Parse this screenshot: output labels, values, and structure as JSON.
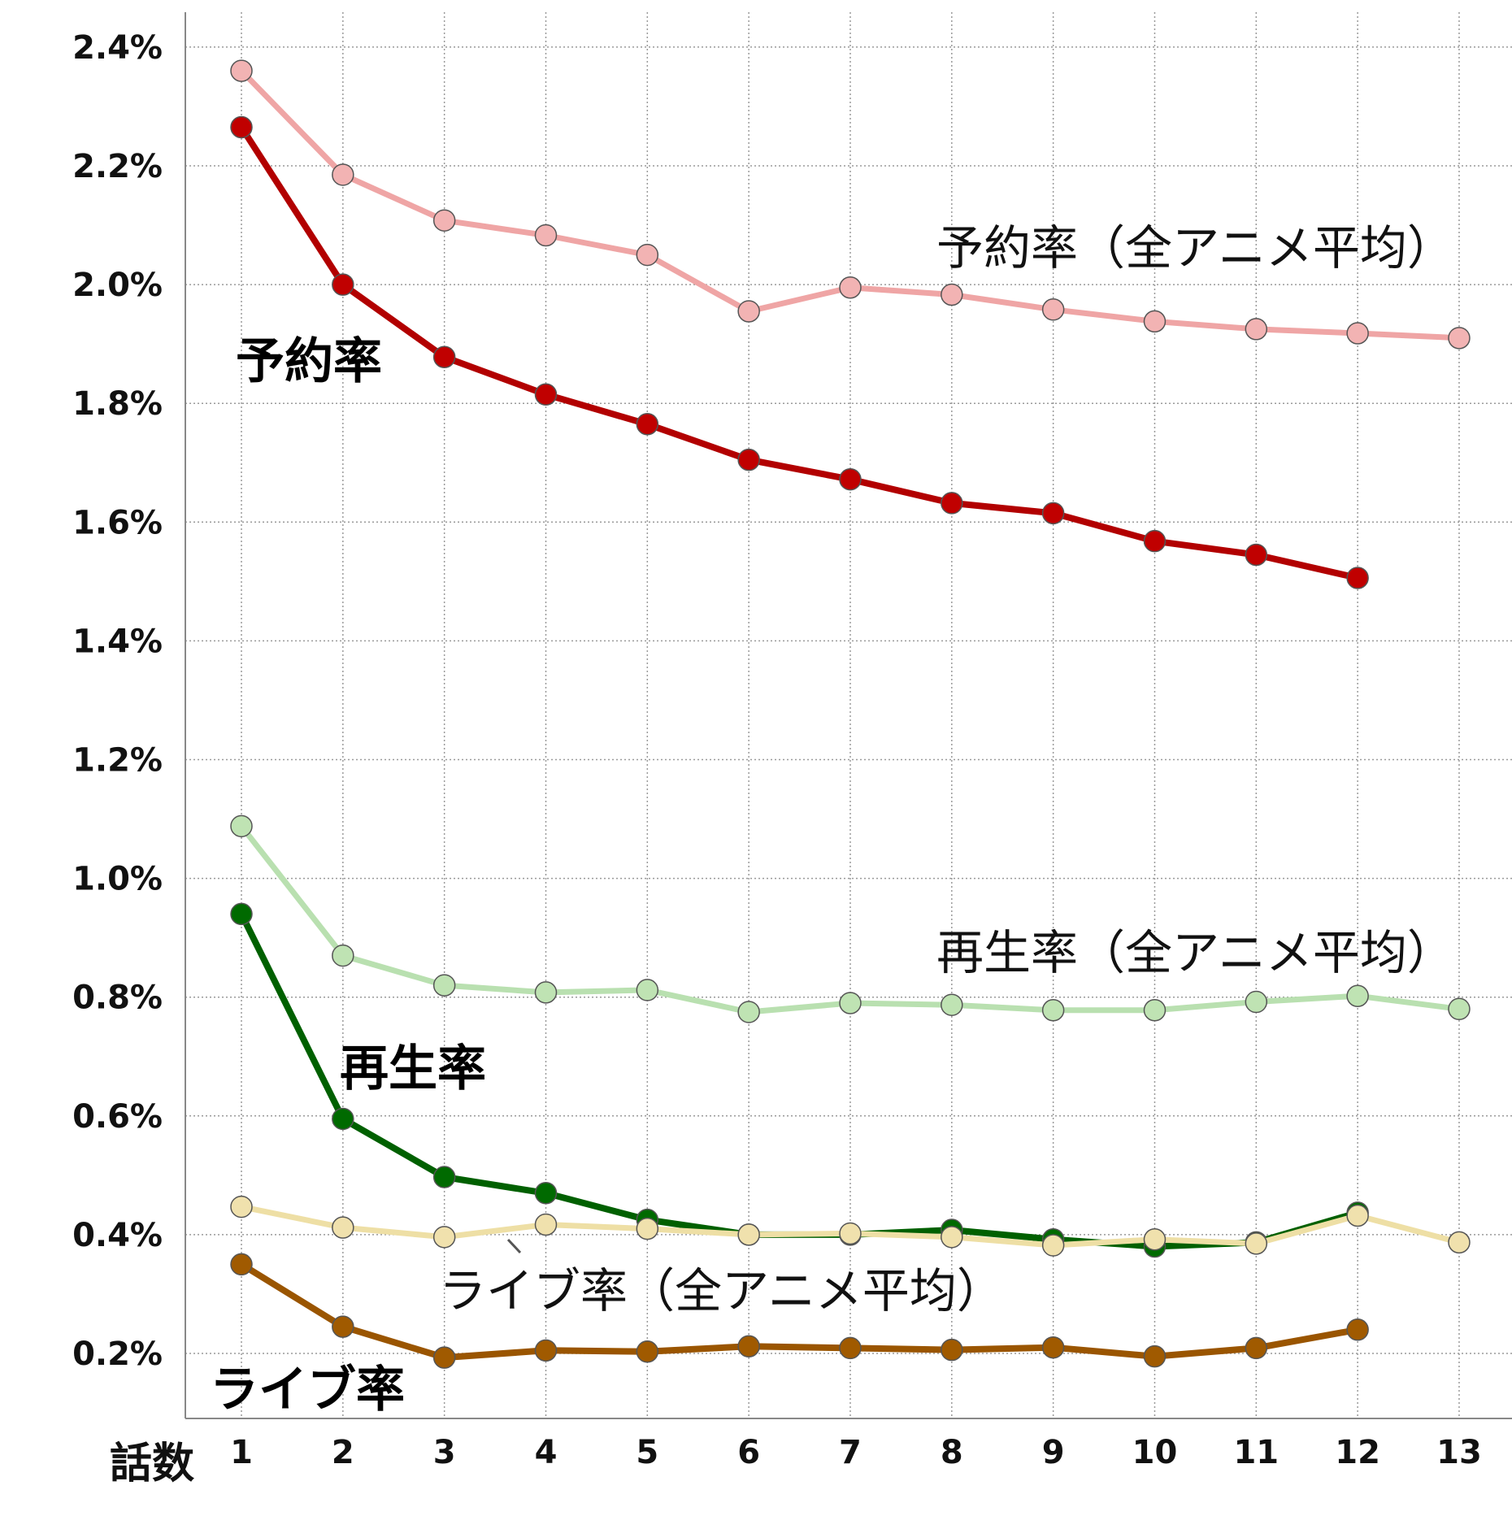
{
  "chart_data": {
    "type": "line",
    "xlabel": "話数",
    "ylabel": "",
    "x": [
      1,
      2,
      3,
      4,
      5,
      6,
      7,
      8,
      9,
      10,
      11,
      12,
      13
    ],
    "ylim": [
      0.1,
      2.45
    ],
    "yticks": [
      0.2,
      0.4,
      0.6,
      0.8,
      1.0,
      1.2,
      1.4,
      1.6,
      1.8,
      2.0,
      2.2,
      2.4
    ],
    "ytick_labels": [
      "0.2%",
      "0.4%",
      "0.6%",
      "0.8%",
      "1.0%",
      "1.2%",
      "1.4%",
      "1.6%",
      "1.8%",
      "2.0%",
      "2.2%",
      "2.4%"
    ],
    "grid": true,
    "series": [
      {
        "key": "reserve_avg",
        "name": "予約率（全アニメ平均）",
        "color": "#efa5a5",
        "marker": "#f2b3b3",
        "bold": false,
        "values": [
          2.36,
          2.185,
          2.108,
          2.083,
          2.05,
          1.955,
          1.995,
          1.983,
          1.958,
          1.938,
          1.925,
          1.918,
          1.91
        ]
      },
      {
        "key": "reserve",
        "name": "予約率",
        "color": "#b20000",
        "marker": "#c00000",
        "bold": true,
        "values": [
          2.265,
          2.0,
          1.878,
          1.815,
          1.765,
          1.705,
          1.672,
          1.632,
          1.615,
          1.568,
          1.545,
          1.506,
          null
        ]
      },
      {
        "key": "play_avg",
        "name": "再生率（全アニメ平均）",
        "color": "#b9e0b0",
        "marker": "#bfe3b3",
        "bold": false,
        "values": [
          1.088,
          0.87,
          0.82,
          0.808,
          0.812,
          0.775,
          0.79,
          0.787,
          0.778,
          0.778,
          0.792,
          0.802,
          0.78
        ]
      },
      {
        "key": "play",
        "name": "再生率",
        "color": "#006000",
        "marker": "#006a00",
        "bold": true,
        "values": [
          0.94,
          0.595,
          0.497,
          0.47,
          0.425,
          0.4,
          0.4,
          0.408,
          0.392,
          0.38,
          0.387,
          0.437,
          null
        ]
      },
      {
        "key": "live_avg",
        "name": "ライブ率（全アニメ平均）",
        "color": "#eedfa5",
        "marker": "#f0e1ad",
        "bold": false,
        "values": [
          0.447,
          0.412,
          0.396,
          0.417,
          0.41,
          0.4,
          0.402,
          0.396,
          0.382,
          0.392,
          0.385,
          0.432,
          0.387
        ]
      },
      {
        "key": "live",
        "name": "ライブ率",
        "color": "#9a5500",
        "marker": "#a05a00",
        "bold": true,
        "values": [
          0.35,
          0.245,
          0.193,
          0.205,
          0.203,
          0.212,
          0.209,
          0.206,
          0.21,
          0.195,
          0.209,
          0.24,
          null
        ]
      }
    ],
    "annotations": [
      "予約率（全アニメ平均）",
      "予約率",
      "再生率（全アニメ平均）",
      "再生率",
      "ライブ率（全アニメ平均）",
      "ライブ率"
    ]
  }
}
